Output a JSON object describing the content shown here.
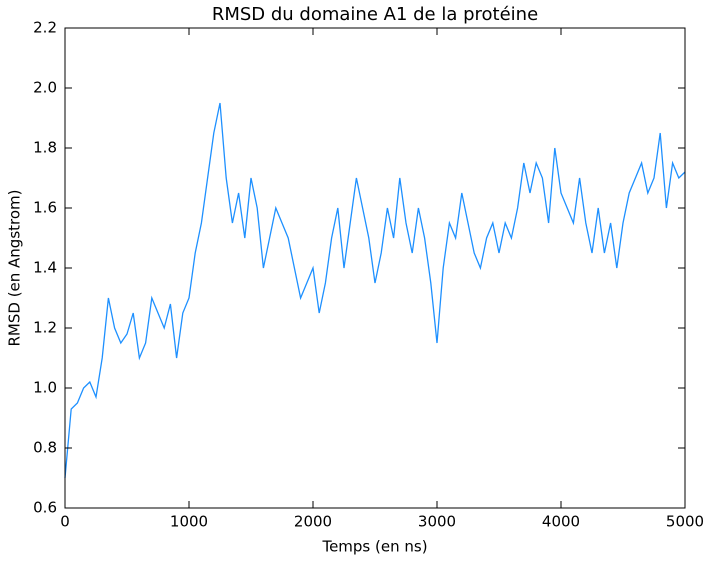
{
  "chart_data": {
    "type": "line",
    "title": "RMSD du domaine A1 de la protéine",
    "x_label": "Temps (en ns)",
    "y_label": "RMSD (en Angstrom)",
    "color": "#1e90ff",
    "grid": false,
    "xlim": [
      0,
      5000
    ],
    "ylim": [
      0.6,
      2.2
    ],
    "xticks": [
      0,
      1000,
      2000,
      3000,
      4000,
      5000
    ],
    "yticks": [
      0.6,
      0.8,
      {
        "value": 1.0,
        "label": "1.0"
      },
      1.2,
      1.4,
      1.6,
      1.8,
      {
        "value": 2.0,
        "label": "2.0"
      },
      2.2
    ],
    "x": [
      0,
      50,
      100,
      150,
      200,
      250,
      300,
      350,
      400,
      450,
      500,
      550,
      600,
      650,
      700,
      750,
      800,
      850,
      900,
      950,
      1000,
      1050,
      1100,
      1150,
      1200,
      1250,
      1300,
      1350,
      1400,
      1450,
      1500,
      1550,
      1600,
      1650,
      1700,
      1750,
      1800,
      1850,
      1900,
      1950,
      2000,
      2050,
      2100,
      2150,
      2200,
      2250,
      2300,
      2350,
      2400,
      2450,
      2500,
      2550,
      2600,
      2650,
      2700,
      2750,
      2800,
      2850,
      2900,
      2950,
      3000,
      3050,
      3100,
      3150,
      3200,
      3250,
      3300,
      3350,
      3400,
      3450,
      3500,
      3550,
      3600,
      3650,
      3700,
      3750,
      3800,
      3850,
      3900,
      3950,
      4000,
      4050,
      4100,
      4150,
      4200,
      4250,
      4300,
      4350,
      4400,
      4450,
      4500,
      4550,
      4600,
      4650,
      4700,
      4750,
      4800,
      4850,
      4900,
      4950,
      5000
    ],
    "values": [
      0.7,
      0.93,
      0.95,
      1.0,
      1.02,
      0.97,
      1.1,
      1.3,
      1.2,
      1.15,
      1.18,
      1.25,
      1.1,
      1.15,
      1.3,
      1.25,
      1.2,
      1.28,
      1.1,
      1.25,
      1.3,
      1.45,
      1.55,
      1.7,
      1.85,
      1.95,
      1.7,
      1.55,
      1.65,
      1.5,
      1.7,
      1.6,
      1.4,
      1.5,
      1.6,
      1.55,
      1.5,
      1.4,
      1.3,
      1.35,
      1.4,
      1.25,
      1.35,
      1.5,
      1.6,
      1.4,
      1.55,
      1.7,
      1.6,
      1.5,
      1.35,
      1.45,
      1.6,
      1.5,
      1.7,
      1.55,
      1.45,
      1.6,
      1.5,
      1.35,
      1.15,
      1.4,
      1.55,
      1.5,
      1.65,
      1.55,
      1.45,
      1.4,
      1.5,
      1.55,
      1.45,
      1.55,
      1.5,
      1.6,
      1.75,
      1.65,
      1.75,
      1.7,
      1.55,
      1.8,
      1.65,
      1.6,
      1.55,
      1.7,
      1.55,
      1.45,
      1.6,
      1.45,
      1.55,
      1.4,
      1.55,
      1.65,
      1.7,
      1.75,
      1.65,
      1.7,
      1.85,
      1.6,
      1.75,
      1.7,
      1.72
    ]
  }
}
